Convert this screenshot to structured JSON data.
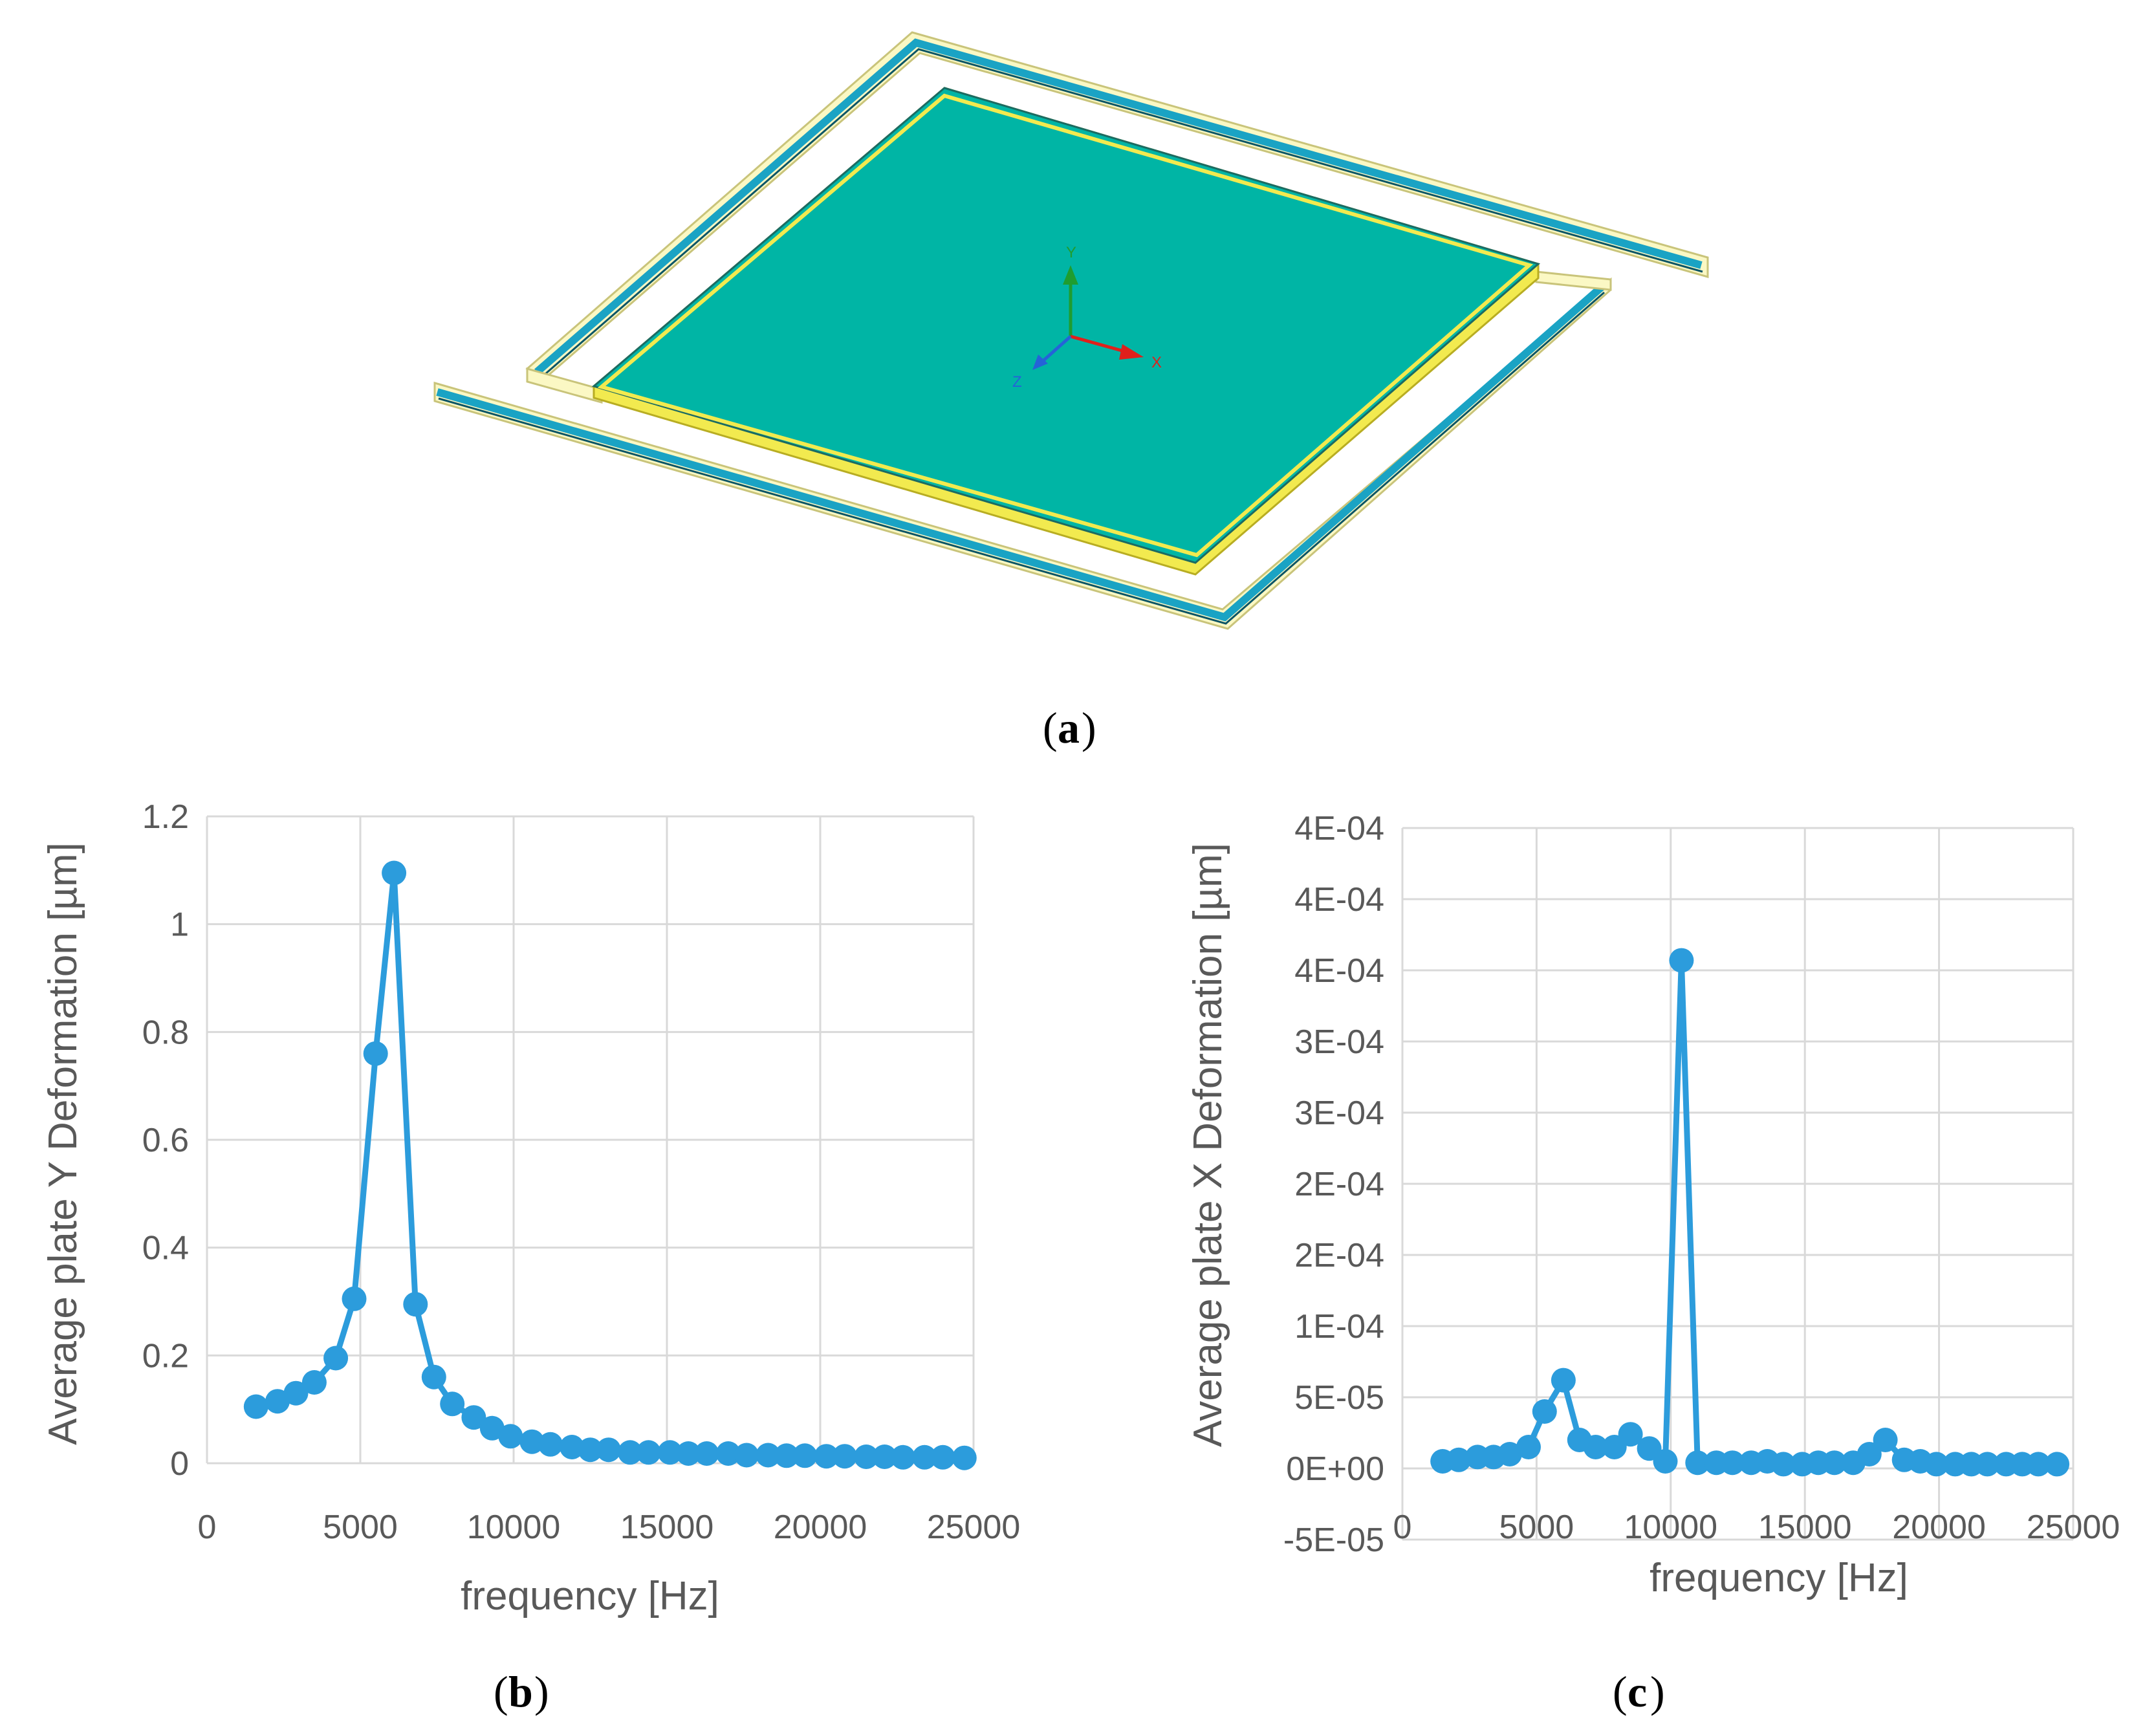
{
  "figure": {
    "panel_a_label": "a",
    "panel_b_label": "b",
    "panel_c_label": "c",
    "paren_open": "(",
    "paren_close": ")",
    "axis_gizmo": {
      "x": "X",
      "y": "Y",
      "z": "Z"
    }
  },
  "colors": {
    "plate": "#00b5a5",
    "plate_edge": "#f2ea4f",
    "frame_fill": "#fbf8c4",
    "frame_stripe": "#1aa3c4",
    "series": "#2c9cdc",
    "axis_x": "#e0201b",
    "axis_y": "#1f9d2f",
    "axis_z": "#2563d8"
  },
  "chart_data": [
    {
      "type": "line",
      "title": "",
      "xlabel": "frequency [Hz]",
      "ylabel": "Average plate Y Deformation [µm]",
      "xlim": [
        0,
        25000
      ],
      "ylim": [
        0,
        1.2
      ],
      "xticks": [
        0,
        5000,
        10000,
        15000,
        20000,
        25000
      ],
      "xtick_labels": [
        "0",
        "5000",
        "10000",
        "15000",
        "20000",
        "25000"
      ],
      "yticks": [
        0,
        0.2,
        0.4,
        0.6,
        0.8,
        1,
        1.2
      ],
      "ytick_labels": [
        "0",
        "0.2",
        "0.4",
        "0.6",
        "0.8",
        "1",
        "1.2"
      ],
      "series": [
        {
          "name": "Average plate Y Deformation",
          "x": [
            1600,
            2300,
            2900,
            3500,
            4200,
            4800,
            5500,
            6100,
            6800,
            7400,
            8000,
            8700,
            9300,
            9900,
            10600,
            11200,
            11900,
            12500,
            13100,
            13800,
            14400,
            15100,
            15700,
            16300,
            17000,
            17600,
            18300,
            18900,
            19500,
            20200,
            20800,
            21500,
            22100,
            22700,
            23400,
            24000,
            24700
          ],
          "values": [
            0.105,
            0.115,
            0.13,
            0.15,
            0.195,
            0.305,
            0.76,
            1.095,
            0.295,
            0.16,
            0.11,
            0.085,
            0.065,
            0.05,
            0.04,
            0.035,
            0.03,
            0.025,
            0.025,
            0.02,
            0.02,
            0.02,
            0.018,
            0.018,
            0.018,
            0.015,
            0.015,
            0.014,
            0.014,
            0.013,
            0.013,
            0.012,
            0.012,
            0.011,
            0.011,
            0.011,
            0.01
          ]
        }
      ]
    },
    {
      "type": "line",
      "title": "",
      "xlabel": "frequency [Hz]",
      "ylabel": "Average plate X Deformation [µm]",
      "xlim": [
        0,
        25000
      ],
      "ylim": [
        -5e-05,
        0.00045
      ],
      "xticks": [
        0,
        5000,
        10000,
        15000,
        20000,
        25000
      ],
      "xtick_labels": [
        "0",
        "5000",
        "10000",
        "15000",
        "20000",
        "25000"
      ],
      "yticks": [
        -5e-05,
        0,
        5e-05,
        0.0001,
        0.00015,
        0.0002,
        0.00025,
        0.0003,
        0.00035,
        0.0004,
        0.00045
      ],
      "ytick_labels": [
        "-5E-05",
        "0E+00",
        "5E-05",
        "1E-04",
        "2E-04",
        "2E-04",
        "3E-04",
        "3E-04",
        "4E-04",
        "4E-04",
        "4E-04"
      ],
      "series": [
        {
          "name": "Average plate X Deformation",
          "x": [
            1500,
            2100,
            2800,
            3400,
            4000,
            4700,
            5300,
            6000,
            6600,
            7200,
            7900,
            8500,
            9200,
            9800,
            10400,
            11000,
            11700,
            12300,
            13000,
            13600,
            14200,
            14900,
            15500,
            16100,
            16800,
            17400,
            18000,
            18700,
            19300,
            19900,
            20600,
            21200,
            21800,
            22500,
            23100,
            23700,
            24400
          ],
          "values": [
            5e-06,
            6e-06,
            8e-06,
            8e-06,
            1e-05,
            1.5e-05,
            4e-05,
            6.2e-05,
            2e-05,
            1.5e-05,
            1.5e-05,
            2.4e-05,
            1.4e-05,
            5e-06,
            0.000357,
            4e-06,
            4e-06,
            4e-06,
            4e-06,
            5e-06,
            3e-06,
            3e-06,
            4e-06,
            4e-06,
            4e-06,
            1e-05,
            2e-05,
            6e-06,
            5e-06,
            3e-06,
            3e-06,
            3e-06,
            3e-06,
            3e-06,
            3e-06,
            3e-06,
            3e-06
          ]
        }
      ]
    }
  ]
}
